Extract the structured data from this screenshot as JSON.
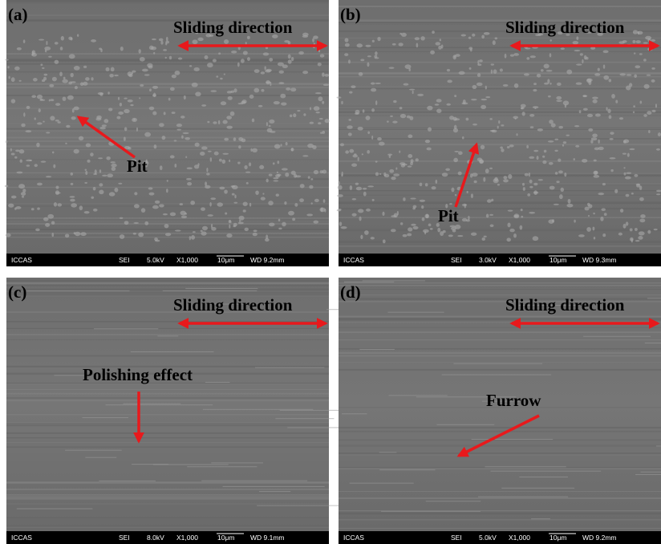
{
  "panels": [
    {
      "label": "(a)",
      "direction": "Sliding direction",
      "annotation": "Pit",
      "info": {
        "institution": "ICCAS",
        "detector": "SEI",
        "voltage": "5.0kV",
        "magnification": "X1,000",
        "scale": "10μm",
        "working_distance": "WD 9.2mm"
      }
    },
    {
      "label": "(b)",
      "direction": "Sliding direction",
      "annotation": "Pit",
      "info": {
        "institution": "ICCAS",
        "detector": "SEI",
        "voltage": "3.0kV",
        "magnification": "X1,000",
        "scale": "10μm",
        "working_distance": "WD 9.3mm"
      }
    },
    {
      "label": "(c)",
      "direction": "Sliding direction",
      "annotation": "Polishing effect",
      "info": {
        "institution": "ICCAS",
        "detector": "SEI",
        "voltage": "8.0kV",
        "magnification": "X1,000",
        "scale": "10μm",
        "working_distance": "WD 9.1mm"
      }
    },
    {
      "label": "(d)",
      "direction": "Sliding direction",
      "annotation": "Furrow",
      "info": {
        "institution": "ICCAS",
        "detector": "SEI",
        "voltage": "5.0kV",
        "magnification": "X1,000",
        "scale": "10μm",
        "working_distance": "WD 9.2mm"
      }
    }
  ]
}
